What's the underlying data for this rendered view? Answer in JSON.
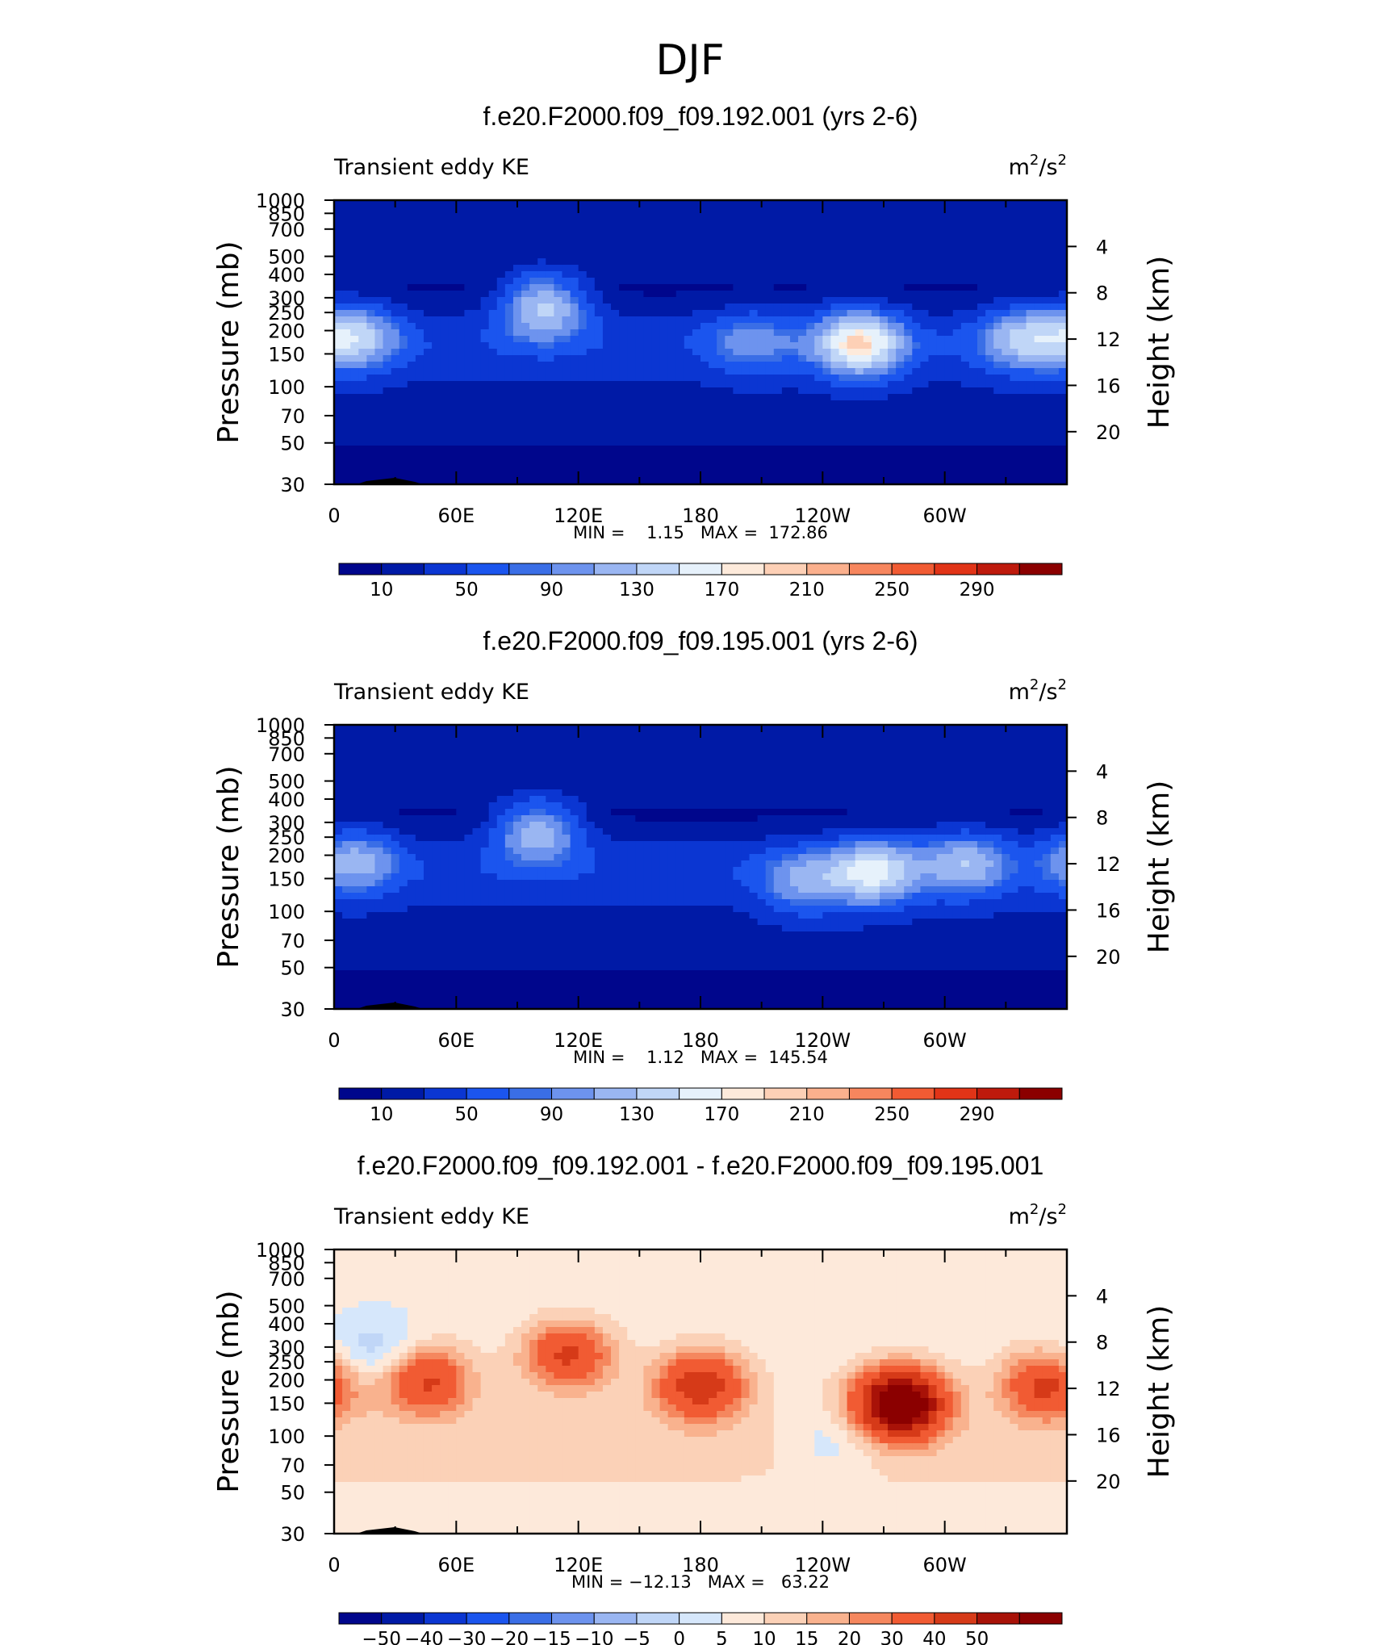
{
  "figure_title": "DJF",
  "colors": {
    "plot_scale": [
      "#00068c",
      "#001aa6",
      "#0b36d2",
      "#1b55ee",
      "#3a6ee6",
      "#6d93ee",
      "#9ab6f2",
      "#c0d6f7",
      "#e6f1fb",
      "#fdeadb",
      "#fdd0b6",
      "#fbb08d",
      "#f7865e",
      "#f15b33",
      "#e13417",
      "#be1a0c",
      "#8b0000"
    ],
    "diff_scale": [
      "#00068c",
      "#001aa6",
      "#0b36d2",
      "#1b55ee",
      "#3a6ee6",
      "#6d93ee",
      "#9ab6f2",
      "#c0d6f7",
      "#d6e7fb",
      "#fde9da",
      "#fbd1b7",
      "#f9b28e",
      "#f5875e",
      "#f15b33",
      "#d63a18",
      "#a81208",
      "#8b0000"
    ],
    "terrain": "#000000"
  },
  "panels": [
    {
      "title": "f.e20.F2000.f09_f09.192.001 (yrs 2-6)",
      "left_label": "Transient eddy KE",
      "units_base": "m",
      "units_exp1": "2",
      "units_mid": "/s",
      "units_exp2": "2",
      "ylabel": "Pressure (mb)",
      "ylabel_right": "Height (km)",
      "minmax": "MIN =    1.15   MAX =  172.86",
      "colorbar_labels": [
        "10",
        "50",
        "90",
        "130",
        "170",
        "210",
        "250",
        "290"
      ]
    },
    {
      "title": "f.e20.F2000.f09_f09.195.001 (yrs 2-6)",
      "left_label": "Transient eddy KE",
      "units_base": "m",
      "units_exp1": "2",
      "units_mid": "/s",
      "units_exp2": "2",
      "ylabel": "Pressure (mb)",
      "ylabel_right": "Height (km)",
      "minmax": "MIN =    1.12   MAX =  145.54",
      "colorbar_labels": [
        "10",
        "50",
        "90",
        "130",
        "170",
        "210",
        "250",
        "290"
      ]
    },
    {
      "title": "f.e20.F2000.f09_f09.192.001 - f.e20.F2000.f09_f09.195.001",
      "left_label": "Transient eddy KE",
      "units_base": "m",
      "units_exp1": "2",
      "units_mid": "/s",
      "units_exp2": "2",
      "ylabel": "Pressure (mb)",
      "ylabel_right": "Height (km)",
      "minmax": "MIN = −12.13   MAX =   63.22",
      "colorbar_labels": [
        "−50",
        "−40",
        "−30",
        "−20",
        "−15",
        "−10",
        "−5",
        "0",
        "5",
        "10",
        "15",
        "20",
        "30",
        "40",
        "50"
      ]
    }
  ],
  "chart_data": [
    {
      "type": "heatmap",
      "title": "f.e20.F2000.f09_f09.192.001 (yrs 2-6)",
      "variable": "Transient eddy KE",
      "units": "m²/s²",
      "ylabel": "Pressure (mb)",
      "ylabel_right": "Height (km)",
      "x_ticklabels": [
        "0",
        "60E",
        "120E",
        "180",
        "120W",
        "60W"
      ],
      "y_ticklabels": [
        "30",
        "50",
        "70",
        "100",
        "150",
        "200",
        "250",
        "300",
        "400",
        "500",
        "700",
        "850",
        "1000"
      ],
      "y_right_ticklabels": [
        "20",
        "16",
        "12",
        "8",
        "4"
      ],
      "y_log_scale": true,
      "ylim": [
        1000,
        30
      ],
      "xlim": [
        0,
        360
      ],
      "min": 1.15,
      "max": 172.86,
      "contour_levels": [
        10,
        20,
        30,
        40,
        50,
        60,
        70,
        80,
        90,
        100,
        110,
        120,
        130,
        140,
        150,
        160,
        170,
        180,
        190,
        200,
        210,
        220,
        230,
        240,
        250,
        260,
        270,
        280,
        290
      ],
      "colorbar_labels": [
        "10",
        "50",
        "90",
        "130",
        "170",
        "210",
        "250",
        "290"
      ],
      "features": [
        {
          "lon": 10,
          "p": 160,
          "amp": 130
        },
        {
          "lon": 103,
          "p": 110,
          "amp": 145
        },
        {
          "lon": 205,
          "p": 170,
          "amp": 90
        },
        {
          "lon": 258,
          "p": 175,
          "amp": 172
        },
        {
          "lon": 338,
          "p": 165,
          "amp": 120
        }
      ]
    },
    {
      "type": "heatmap",
      "title": "f.e20.F2000.f09_f09.195.001 (yrs 2-6)",
      "variable": "Transient eddy KE",
      "units": "m²/s²",
      "ylabel": "Pressure (mb)",
      "ylabel_right": "Height (km)",
      "x_ticklabels": [
        "0",
        "60E",
        "120E",
        "180",
        "120W",
        "60W"
      ],
      "y_ticklabels": [
        "30",
        "50",
        "70",
        "100",
        "150",
        "200",
        "250",
        "300",
        "400",
        "500",
        "700",
        "850",
        "1000"
      ],
      "y_right_ticklabels": [
        "20",
        "16",
        "12",
        "8",
        "4"
      ],
      "y_log_scale": true,
      "ylim": [
        1000,
        30
      ],
      "xlim": [
        0,
        360
      ],
      "min": 1.12,
      "max": 145.54,
      "contour_levels": [
        10,
        20,
        30,
        40,
        50,
        60,
        70,
        80,
        90,
        100,
        110,
        120,
        130,
        140,
        150,
        160,
        170,
        180,
        190,
        200,
        210,
        220,
        230,
        240,
        250,
        260,
        270,
        280,
        290
      ],
      "colorbar_labels": [
        "10",
        "50",
        "90",
        "130",
        "170",
        "210",
        "250",
        "290"
      ],
      "features": [
        {
          "lon": 10,
          "p": 160,
          "amp": 110
        },
        {
          "lon": 100,
          "p": 110,
          "amp": 130
        },
        {
          "lon": 230,
          "p": 210,
          "amp": 100
        },
        {
          "lon": 265,
          "p": 185,
          "amp": 145
        },
        {
          "lon": 310,
          "p": 165,
          "amp": 115
        }
      ]
    },
    {
      "type": "heatmap",
      "title": "f.e20.F2000.f09_f09.192.001 - f.e20.F2000.f09_f09.195.001",
      "variable": "Transient eddy KE",
      "units": "m²/s²",
      "ylabel": "Pressure (mb)",
      "ylabel_right": "Height (km)",
      "x_ticklabels": [
        "0",
        "60E",
        "120E",
        "180",
        "120W",
        "60W"
      ],
      "y_ticklabels": [
        "30",
        "50",
        "70",
        "100",
        "150",
        "200",
        "250",
        "300",
        "400",
        "500",
        "700",
        "850",
        "1000"
      ],
      "y_right_ticklabels": [
        "20",
        "16",
        "12",
        "8",
        "4"
      ],
      "y_log_scale": true,
      "ylim": [
        1000,
        30
      ],
      "xlim": [
        0,
        360
      ],
      "min": -12.13,
      "max": 63.22,
      "contour_levels": [
        -50,
        -40,
        -30,
        -20,
        -15,
        -10,
        -5,
        0,
        5,
        10,
        15,
        20,
        30,
        40,
        50
      ],
      "colorbar_labels": [
        "−50",
        "−40",
        "−30",
        "−20",
        "−15",
        "−10",
        "−5",
        "0",
        "5",
        "10",
        "15",
        "20",
        "30",
        "40",
        "50"
      ],
      "features": [
        {
          "lon": 45,
          "p": 150,
          "amp": 30
        },
        {
          "lon": 115,
          "p": 110,
          "amp": 30
        },
        {
          "lon": 180,
          "p": 160,
          "amp": 35
        },
        {
          "lon": 278,
          "p": 200,
          "amp": 63
        },
        {
          "lon": 350,
          "p": 160,
          "amp": 30
        },
        {
          "lon": 20,
          "p": 110,
          "amp": -12
        },
        {
          "lon": 245,
          "p": 320,
          "amp": -8
        }
      ]
    }
  ]
}
